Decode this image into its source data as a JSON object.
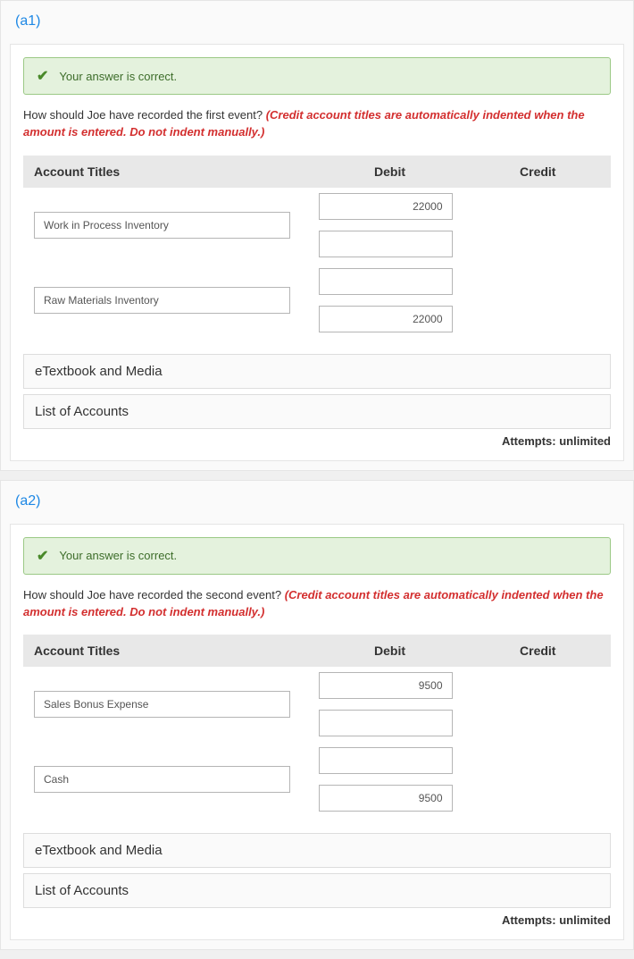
{
  "sections": [
    {
      "label": "(a1)",
      "banner_text": "Your answer is correct.",
      "question_plain": "How should Joe have recorded the first event? ",
      "question_emph": "(Credit account titles are automatically indented when the amount is entered. Do not indent manually.)",
      "headers": {
        "titles": "Account Titles",
        "debit": "Debit",
        "credit": "Credit"
      },
      "rows": [
        {
          "title": "Work in Process Inventory",
          "debit": "22000",
          "credit": ""
        },
        {
          "title": "Raw Materials Inventory",
          "debit": "",
          "credit": "22000"
        }
      ],
      "accordions": [
        "eTextbook and Media",
        "List of Accounts"
      ],
      "attempts": "Attempts: unlimited"
    },
    {
      "label": "(a2)",
      "banner_text": "Your answer is correct.",
      "question_plain": "How should Joe have recorded the second event? ",
      "question_emph": "(Credit account titles are automatically indented when the amount is entered. Do not indent manually.)",
      "headers": {
        "titles": "Account Titles",
        "debit": "Debit",
        "credit": "Credit"
      },
      "rows": [
        {
          "title": "Sales Bonus Expense",
          "debit": "9500",
          "credit": ""
        },
        {
          "title": "Cash",
          "debit": "",
          "credit": "9500"
        }
      ],
      "accordions": [
        "eTextbook and Media",
        "List of Accounts"
      ],
      "attempts": "Attempts: unlimited"
    }
  ],
  "colors": {
    "section_label": "#1e88e5",
    "banner_bg": "#e4f2dd",
    "banner_border": "#9bc985",
    "check": "#4a8a2a",
    "emph": "#d32f2f",
    "header_bg": "#e8e8e8"
  }
}
